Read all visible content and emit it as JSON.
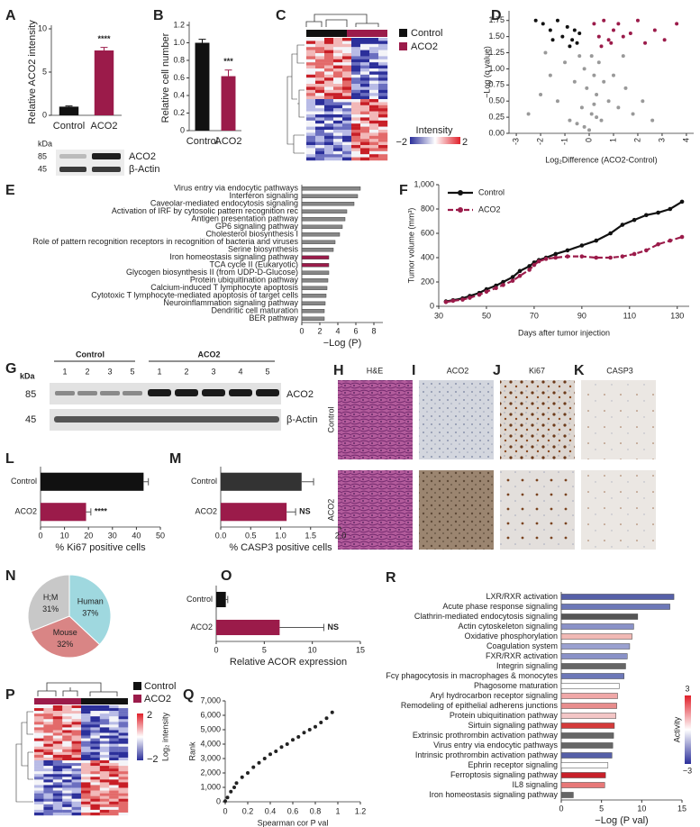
{
  "panels": [
    "A",
    "B",
    "C",
    "D",
    "E",
    "F",
    "G",
    "H",
    "I",
    "J",
    "K",
    "L",
    "M",
    "N",
    "O",
    "P",
    "Q",
    "R"
  ],
  "blot_a": {
    "kda_label": "kDa",
    "markers": [
      "85",
      "45"
    ],
    "proteins": [
      "ACO2",
      "β-Actin"
    ]
  },
  "heatmap_c": {
    "groups": [
      "Control",
      "ACO2"
    ],
    "scale_title": "Intensity",
    "scale_labels": [
      "−2",
      "2"
    ]
  },
  "blot_g": {
    "kda_label": "kDa",
    "groups": [
      "Control",
      "ACO2"
    ],
    "lanes": [
      [
        "1",
        "2",
        "3",
        "5"
      ],
      [
        "1",
        "2",
        "3",
        "4",
        "5"
      ]
    ],
    "markers": [
      "85",
      "45"
    ],
    "proteins": [
      "ACO2",
      "β-Actin"
    ]
  },
  "histology": {
    "stains": [
      "H&E",
      "ACO2",
      "Ki67",
      "CASP3"
    ],
    "groups": [
      "Control",
      "ACO2"
    ]
  },
  "heatmap_p": {
    "groups": [
      "Control",
      "ACO2"
    ],
    "scale_title": "Log₂ intensity",
    "scale_labels": [
      "2",
      "−2"
    ]
  },
  "chart_data": [
    {
      "type": "bar",
      "ylabel": "Relative ACO2 intensity",
      "categories": [
        "Control",
        "ACO2"
      ],
      "values": [
        1,
        7.5
      ],
      "errors": [
        0.08,
        0.35
      ],
      "colors": [
        "#111111",
        "#9b1b4a"
      ],
      "ylim": [
        0,
        10
      ],
      "yticks": [
        0,
        5,
        10
      ],
      "annotation": "****"
    },
    {
      "type": "bar",
      "ylabel": "Relative cell number",
      "categories": [
        "Control",
        "ACO2"
      ],
      "values": [
        1,
        0.62
      ],
      "errors": [
        0.04,
        0.07
      ],
      "colors": [
        "#111111",
        "#9b1b4a"
      ],
      "ylim": [
        0,
        1.2
      ],
      "yticks": [
        0,
        0.2,
        0.4,
        0.6,
        0.8,
        {
          "value": 1,
          "label": "1.0"
        },
        1.2
      ],
      "annotation": "***"
    },
    {
      "type": "scatter",
      "xlabel": "Log₂Difference (ACO2-Control)",
      "ylabel": "−Log (q value)",
      "xlim": [
        -3.3,
        4.3
      ],
      "xticks": [
        -3,
        -2,
        -1,
        0,
        1,
        2,
        3,
        4
      ],
      "ylim": [
        0,
        1.9
      ],
      "yticks": [
        {
          "value": 0,
          "label": "0.00"
        },
        {
          "value": 0.25,
          "label": "0.25"
        },
        {
          "value": 0.5,
          "label": "0.50"
        },
        {
          "value": 0.75,
          "label": "0.75"
        },
        {
          "value": 1,
          "label": "1.00"
        },
        {
          "value": 1.25,
          "label": "1.25"
        },
        {
          "value": 1.5,
          "label": "1.50"
        },
        {
          "value": 1.75,
          "label": "1.75"
        }
      ],
      "series": [
        {
          "color": "#999999",
          "x": [
            -2.5,
            -2,
            -1.6,
            -1.3,
            -1,
            -0.8,
            -0.6,
            -0.4,
            -0.3,
            -0.2,
            -0.1,
            0,
            0.1,
            0.2,
            0.3,
            0.4,
            0.5,
            0.6,
            0.8,
            1,
            1.2,
            1.5,
            1.8,
            2.2,
            2.6,
            -0.5,
            0.2,
            -0.2,
            0.1,
            0.3,
            -1.8,
            1.4
          ],
          "y": [
            0.3,
            0.6,
            0.9,
            0.5,
            1.1,
            0.2,
            0.8,
            1.2,
            0.4,
            0.1,
            0.7,
            0.05,
            0.3,
            0.9,
            0.6,
            1.1,
            0.2,
            0.8,
            0.5,
            0.9,
            0.4,
            0.7,
            0.3,
            0.5,
            0.2,
            0.15,
            0.45,
            1.0,
            1.2,
            0.25,
            1.25,
            1.2
          ]
        },
        {
          "color": "#111111",
          "x": [
            -2.2,
            -1.9,
            -1.6,
            -1.3,
            -1.1,
            -0.9,
            -0.7,
            -0.6,
            -0.5,
            -0.4,
            -1.5,
            -0.8
          ],
          "y": [
            1.75,
            1.7,
            1.6,
            1.75,
            1.5,
            1.65,
            1.45,
            1.6,
            1.4,
            1.55,
            1.45,
            1.35
          ]
        },
        {
          "color": "#9b1b4a",
          "x": [
            0.2,
            0.4,
            0.6,
            0.8,
            1.0,
            1.2,
            1.4,
            1.7,
            2.0,
            2.3,
            2.7,
            3.1,
            3.6,
            0.5,
            0.9
          ],
          "y": [
            1.7,
            1.5,
            1.75,
            1.45,
            1.6,
            1.7,
            1.5,
            1.55,
            1.75,
            1.4,
            1.6,
            1.45,
            1.7,
            1.35,
            1.4
          ]
        }
      ]
    },
    {
      "type": "bar",
      "orientation": "horizontal",
      "xlabel": "−Log (P)",
      "categories": [
        "Virus entry via endocytic pathways",
        "Interferon signaling",
        "Caveolar-mediated endocytosis signaling",
        "Activation of IRF by cytosolic pattern recognition rec",
        "Antigen presentation pathway",
        "GP6 signaling pathway",
        "Cholesterol biosynthesis I",
        "Role of pattern recognition receptors in recognition of bacteria and viruses",
        "Serine biosynthesis",
        "Iron homeostasis signaling pathway",
        "TCA cycle II (Eukaryotic)",
        "Glycogen biosynthesis II (from UDP-D-Glucose)",
        "Protein ubiquitination pathway",
        "Calcium-induced T lymphocyte apoptosis",
        "Cytotoxic T lymphocyte-mediated apoptosis of target cells",
        "Neuroinflammation signaling pathway",
        "Dendritic cell maturation",
        "BER pathway"
      ],
      "values": [
        6.5,
        6.2,
        5.8,
        5.0,
        4.8,
        4.5,
        4.2,
        3.7,
        3.5,
        3.0,
        3.0,
        3.0,
        2.9,
        2.8,
        2.7,
        2.6,
        2.5,
        2.5
      ],
      "colors": [
        "#888888",
        "#888888",
        "#888888",
        "#888888",
        "#888888",
        "#888888",
        "#888888",
        "#888888",
        "#888888",
        "#9b1b4a",
        "#9b1b4a",
        "#888888",
        "#888888",
        "#888888",
        "#888888",
        "#888888",
        "#888888",
        "#888888"
      ],
      "xlim": [
        0,
        9
      ],
      "xticks": [
        0,
        2,
        4,
        6,
        8
      ]
    },
    {
      "type": "line",
      "xlabel": "Days after tumor injection",
      "ylabel": "Tumor volume (mm³)",
      "x": [
        33,
        36,
        40,
        43,
        47,
        50,
        54,
        57,
        61,
        64,
        68,
        70,
        72,
        75,
        79,
        84,
        90,
        96,
        102,
        107,
        112,
        117,
        122,
        127,
        132
      ],
      "series": [
        {
          "name": "Control",
          "color": "#111111",
          "line_style": "solid",
          "values": [
            40,
            50,
            65,
            85,
            110,
            140,
            170,
            200,
            240,
            290,
            330,
            360,
            380,
            400,
            430,
            460,
            500,
            540,
            600,
            670,
            710,
            750,
            770,
            800,
            860
          ]
        },
        {
          "name": "ACO2",
          "color": "#9b1b4a",
          "line_style": "dashed",
          "values": [
            35,
            45,
            55,
            70,
            95,
            120,
            150,
            175,
            210,
            250,
            300,
            340,
            370,
            390,
            400,
            410,
            410,
            400,
            400,
            410,
            430,
            460,
            510,
            540,
            570
          ]
        }
      ],
      "xlim": [
        30,
        135
      ],
      "xticks": [
        30,
        50,
        70,
        90,
        110,
        130
      ],
      "ylim": [
        0,
        1000
      ],
      "yticks": [
        0,
        200,
        400,
        600,
        800,
        {
          "value": 1000,
          "label": "1,000"
        }
      ]
    },
    {
      "type": "bar",
      "orientation": "horizontal",
      "xlabel": "% Ki67 positive cells",
      "categories": [
        "Control",
        "ACO2"
      ],
      "values": [
        43,
        19
      ],
      "errors": [
        2,
        2
      ],
      "colors": [
        "#111111",
        "#9b1b4a"
      ],
      "xlim": [
        0,
        50
      ],
      "xticks": [
        0,
        10,
        20,
        30,
        40,
        50
      ],
      "annotation": "****"
    },
    {
      "type": "bar",
      "orientation": "horizontal",
      "xlabel": "% CASP3 positive cells",
      "categories": [
        "Control",
        "ACO2"
      ],
      "values": [
        1.35,
        1.1
      ],
      "errors": [
        0.2,
        0.15
      ],
      "colors": [
        "#333333",
        "#9b1b4a"
      ],
      "xlim": [
        0,
        2
      ],
      "xticks": [
        {
          "value": 0,
          "label": "0.0"
        },
        0.5,
        {
          "value": 1,
          "label": "1.0"
        },
        1.5,
        {
          "value": 2,
          "label": "2.0"
        }
      ],
      "annotation": "NS"
    },
    {
      "type": "pie",
      "categories": [
        "Human",
        "Mouse",
        "H;M"
      ],
      "values": [
        37,
        32,
        31
      ],
      "value_labels": [
        "37%",
        "32%",
        "31%"
      ],
      "colors": [
        "#9fd8df",
        "#d98585",
        "#c8c8c8"
      ]
    },
    {
      "type": "bar",
      "orientation": "horizontal",
      "xlabel": "Relative ACOR expression",
      "categories": [
        "Control",
        "ACO2"
      ],
      "values": [
        1,
        6.6
      ],
      "errors": [
        0.2,
        4.6
      ],
      "colors": [
        "#111111",
        "#9b1b4a"
      ],
      "xlim": [
        0,
        15
      ],
      "xticks": [
        0,
        5,
        10,
        15
      ],
      "annotation": "NS"
    },
    {
      "type": "scatter",
      "xlabel": "Spearman cor P val",
      "ylabel": "Rank",
      "xlim": [
        0,
        1.2
      ],
      "xticks": [
        0,
        0.2,
        0.4,
        0.6,
        0.8,
        1,
        1.2
      ],
      "ylim": [
        0,
        7000
      ],
      "yticks": [
        0,
        {
          "value": 1000,
          "label": "1,000"
        },
        {
          "value": 2000,
          "label": "2,000"
        },
        {
          "value": 3000,
          "label": "3,000"
        },
        {
          "value": 4000,
          "label": "4,000"
        },
        {
          "value": 5000,
          "label": "5,000"
        },
        {
          "value": 6000,
          "label": "6,000"
        },
        {
          "value": 7000,
          "label": "7,000"
        }
      ],
      "series": [
        {
          "color": "#222222",
          "x": [
            0,
            0.02,
            0.05,
            0.08,
            0.1,
            0.15,
            0.2,
            0.25,
            0.3,
            0.35,
            0.4,
            0.45,
            0.5,
            0.55,
            0.6,
            0.65,
            0.7,
            0.75,
            0.8,
            0.85,
            0.9,
            0.95
          ],
          "y": [
            50,
            300,
            700,
            1000,
            1300,
            1700,
            2000,
            2400,
            2700,
            3000,
            3300,
            3500,
            3800,
            4000,
            4300,
            4500,
            4800,
            5000,
            5200,
            5500,
            5800,
            6200
          ]
        }
      ]
    },
    {
      "type": "bar",
      "orientation": "horizontal",
      "xlabel": "−Log (P val)",
      "categories": [
        "LXR/RXR activation",
        "Acute phase response signaling",
        "Clathrin-mediated endocytosis signaling",
        "Actin cytoskeleton signaling",
        "Oxidative phosphorylation",
        "Coagulation system",
        "FXR/RXR activation",
        "Integrin signaling",
        "Fcγ phagocytosis in macrophages & monocytes",
        "Phagosome maturation",
        "Aryl hydrocarbon receptor signaling",
        "Remodeling of epithelial adherens junctions",
        "Protein ubiquitination pathway",
        "Sirtuin signaling pathway",
        "Extrinsic prothrombin activation pathway",
        "Virus entry via endocytic pathways",
        "Intrinsic prothrombin activation pathway",
        "Ephrin receptor signaling",
        "Ferroptosis signaling pathway",
        "IL8 signaling",
        "Iron homeostasis signaling pathway"
      ],
      "values": [
        14,
        13.5,
        9.5,
        9,
        8.8,
        8.5,
        8.2,
        8,
        7.8,
        7.2,
        7,
        6.9,
        6.8,
        6.6,
        6.5,
        6.4,
        6.3,
        5.8,
        5.5,
        5.4,
        1.5
      ],
      "colors": [
        "#5660a8",
        "#6d78b8",
        "#555555",
        "#8a92c8",
        "#f1b9b5",
        "#9aa1d0",
        "#8a92c8",
        "#666666",
        "#6d78b8",
        "#ffffff",
        "#f0a8a8",
        "#e88d8d",
        "#f3c6c6",
        "#d43a3a",
        "#666666",
        "#666666",
        "#5660a8",
        "#ffffff",
        "#c8202a",
        "#e87878",
        "#666666"
      ],
      "xlim": [
        0,
        15
      ],
      "xticks": [
        0,
        5,
        10,
        15
      ],
      "colorbar": {
        "title": "Activity",
        "labels": [
          "3",
          "−3"
        ]
      }
    }
  ]
}
